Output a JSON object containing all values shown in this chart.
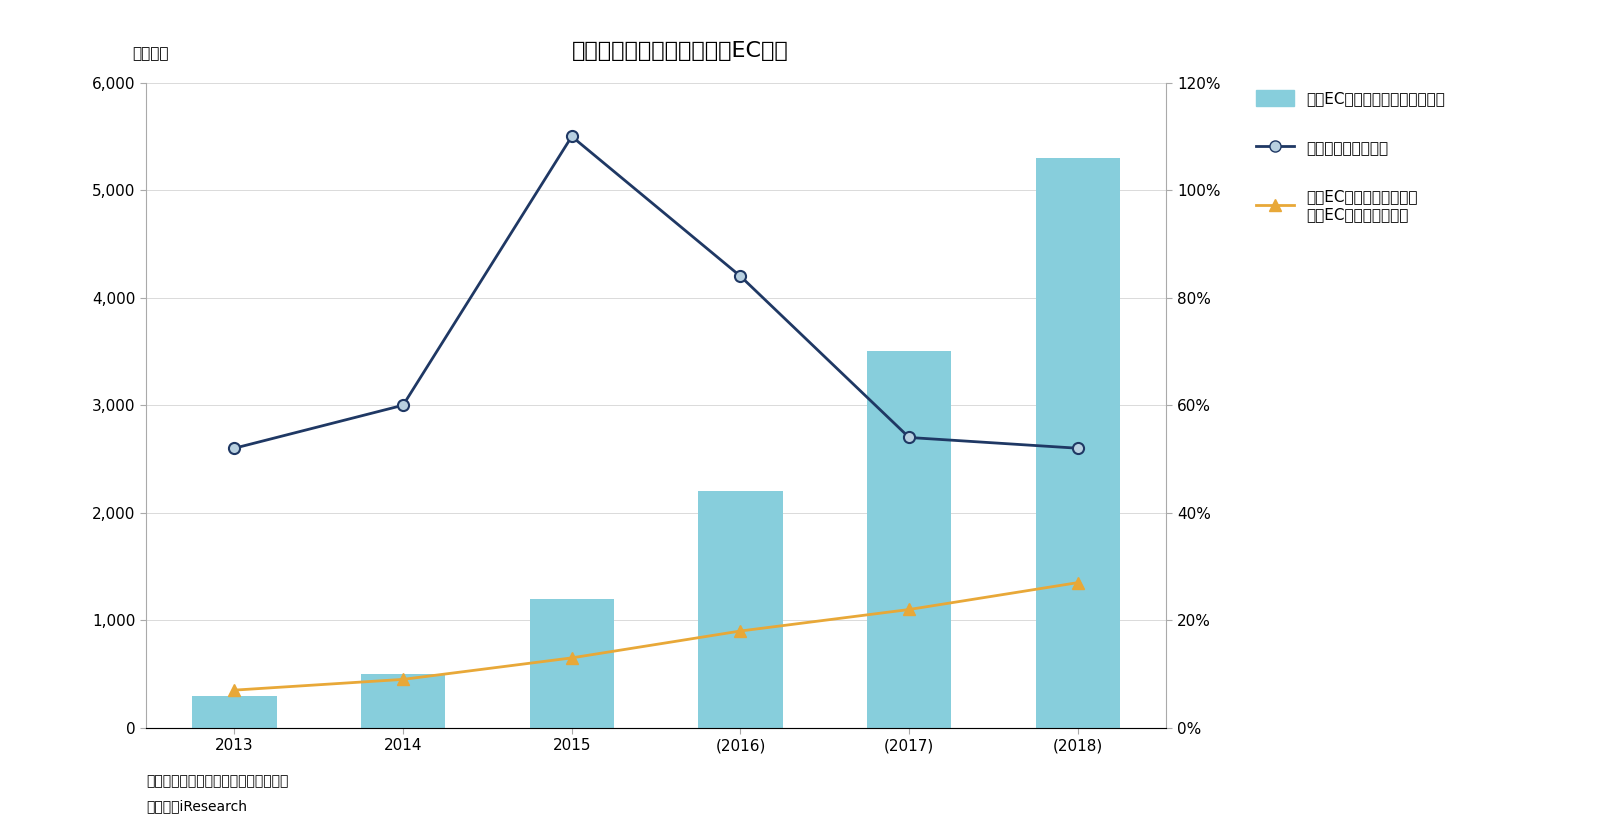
{
  "title": "図表６　中国における越境EC市場",
  "categories": [
    "2013",
    "2014",
    "2015",
    "(2016)",
    "(2017)",
    "(2018)"
  ],
  "bar_values": [
    300,
    500,
    1200,
    2200,
    3500,
    5300
  ],
  "line1_values": [
    52,
    60,
    110,
    84,
    54,
    52
  ],
  "line2_values": [
    7,
    9,
    13,
    18,
    22,
    27
  ],
  "bar_color": "#87CEDC",
  "line1_color": "#1F3864",
  "line2_color": "#E8A838",
  "left_ylabel": "（億元）",
  "left_ylim": [
    0,
    6000
  ],
  "left_yticks": [
    0,
    1000,
    2000,
    3000,
    4000,
    5000,
    6000
  ],
  "right_ylim": [
    0,
    120
  ],
  "right_yticks": [
    0,
    20,
    40,
    60,
    80,
    100,
    120
  ],
  "right_yticklabels": [
    "0%",
    "20%",
    "40%",
    "60%",
    "80%",
    "100%",
    "120%"
  ],
  "legend_bar": "越境EC（小売輸入）額（億元）",
  "legend_line1": "前年比増加率（％）",
  "legend_line2_line1": "越境EC（小売輸入）額／",
  "legend_line2_line2": "越境EC輸入総額（％）",
  "note1": "（注）括弧付きの年のデータは推計値",
  "note2": "（出所）iResearch",
  "title_fontsize": 16,
  "label_fontsize": 11,
  "tick_fontsize": 11,
  "note_fontsize": 10,
  "background_color": "#FFFFFF"
}
